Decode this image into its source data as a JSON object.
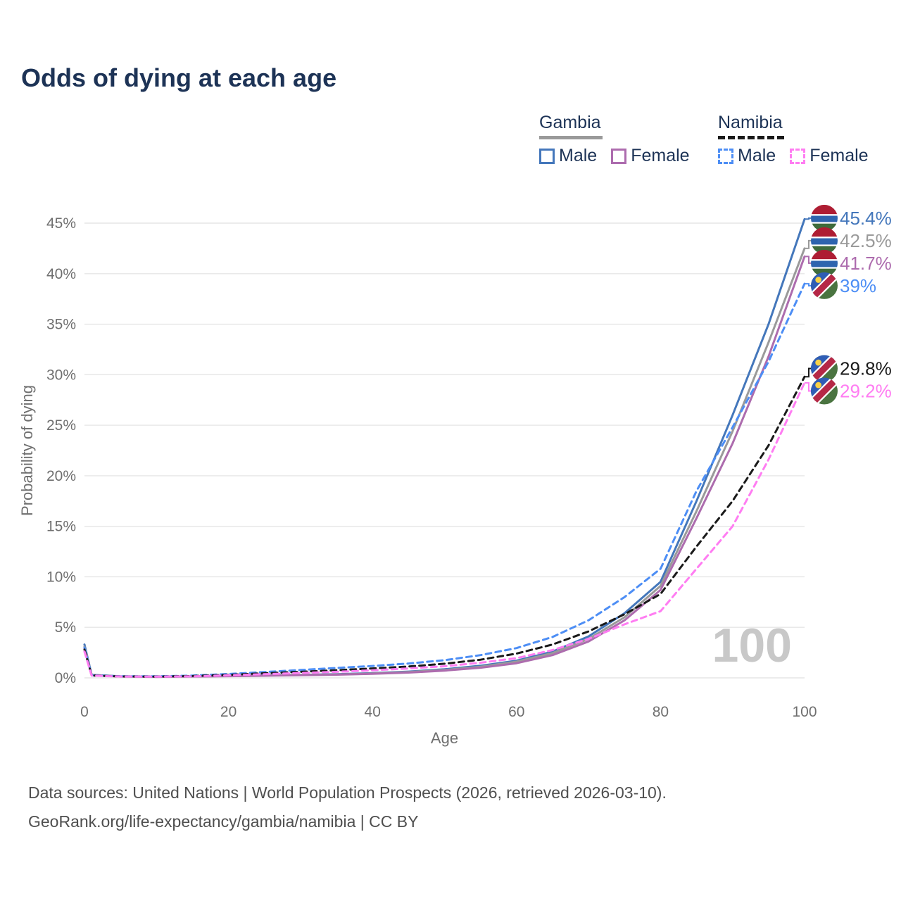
{
  "title": "Odds of dying at each age",
  "legend": {
    "groups": [
      {
        "label": "Gambia",
        "line_style": "solid",
        "group_color": "#9a9a9a",
        "items": [
          {
            "label": "Male",
            "color": "#4477bb"
          },
          {
            "label": "Female",
            "color": "#ad6cae"
          }
        ]
      },
      {
        "label": "Namibia",
        "line_style": "dashed",
        "group_color": "#1a1a1a",
        "items": [
          {
            "label": "Male",
            "color": "#4d8ef5"
          },
          {
            "label": "Female",
            "color": "#ff7df2"
          }
        ]
      }
    ]
  },
  "watermark": "100",
  "footer": {
    "line1": "Data sources: United Nations | World Population Prospects (2026, retrieved 2026-03-10).",
    "line2": "GeoRank.org/life-expectancy/gambia/namibia | CC BY"
  },
  "chart_data": {
    "type": "line",
    "title": "Odds of dying at each age",
    "xlabel": "Age",
    "ylabel": "Probability of dying",
    "xlim": [
      0,
      100
    ],
    "ylim": [
      0,
      45
    ],
    "y_unit": "%",
    "x_ticks": [
      0,
      20,
      40,
      60,
      80,
      100
    ],
    "y_ticks": [
      0,
      5,
      10,
      15,
      20,
      25,
      30,
      35,
      40,
      45
    ],
    "grid": "horizontal",
    "legend_position": "top-right",
    "x": [
      0,
      1,
      5,
      10,
      15,
      20,
      25,
      30,
      35,
      40,
      45,
      50,
      55,
      60,
      65,
      70,
      75,
      80,
      85,
      90,
      95,
      100
    ],
    "series": [
      {
        "name": "Gambia Male",
        "country": "Gambia",
        "sex": "Male",
        "color": "#4477bb",
        "dashed": false,
        "end_label": "45.4%",
        "values": [
          3.3,
          0.3,
          0.15,
          0.12,
          0.15,
          0.2,
          0.25,
          0.3,
          0.37,
          0.47,
          0.62,
          0.85,
          1.2,
          1.7,
          2.6,
          4.1,
          6.4,
          9.5,
          17.5,
          26.0,
          35.0,
          45.4
        ]
      },
      {
        "name": "Gambia",
        "country": "Gambia",
        "sex": "Both",
        "color": "#9a9a9a",
        "dashed": false,
        "end_label": "42.5%",
        "values": [
          3.1,
          0.28,
          0.14,
          0.11,
          0.14,
          0.18,
          0.23,
          0.28,
          0.34,
          0.43,
          0.57,
          0.78,
          1.1,
          1.6,
          2.45,
          3.85,
          6.0,
          9.1,
          16.5,
          24.4,
          33.2,
          42.5
        ]
      },
      {
        "name": "Gambia Female",
        "country": "Gambia",
        "sex": "Female",
        "color": "#ad6cae",
        "dashed": false,
        "end_label": "41.7%",
        "values": [
          2.9,
          0.26,
          0.13,
          0.1,
          0.13,
          0.17,
          0.21,
          0.26,
          0.31,
          0.4,
          0.52,
          0.72,
          1.0,
          1.45,
          2.25,
          3.6,
          5.7,
          8.7,
          15.8,
          23.2,
          31.8,
          41.7
        ]
      },
      {
        "name": "Namibia Male",
        "country": "Namibia",
        "sex": "Male",
        "color": "#4d8ef5",
        "dashed": true,
        "end_label": "39%",
        "values": [
          3.0,
          0.25,
          0.15,
          0.15,
          0.22,
          0.38,
          0.58,
          0.78,
          0.98,
          1.18,
          1.42,
          1.75,
          2.25,
          2.95,
          4.05,
          5.7,
          8.0,
          10.8,
          18.5,
          24.8,
          31.3,
          39.0
        ]
      },
      {
        "name": "Namibia",
        "country": "Namibia",
        "sex": "Both",
        "color": "#1a1a1a",
        "dashed": true,
        "end_label": "29.8%",
        "values": [
          2.8,
          0.24,
          0.14,
          0.13,
          0.18,
          0.3,
          0.45,
          0.6,
          0.76,
          0.93,
          1.12,
          1.4,
          1.8,
          2.4,
          3.3,
          4.6,
          6.3,
          8.3,
          13.0,
          17.5,
          23.0,
          29.8
        ]
      },
      {
        "name": "Namibia Female",
        "country": "Namibia",
        "sex": "Female",
        "color": "#ff7df2",
        "dashed": true,
        "end_label": "29.2%",
        "values": [
          2.6,
          0.22,
          0.13,
          0.12,
          0.15,
          0.25,
          0.36,
          0.48,
          0.6,
          0.75,
          0.93,
          1.15,
          1.5,
          1.95,
          2.75,
          3.85,
          5.3,
          6.6,
          10.8,
          15.0,
          21.6,
          29.2
        ]
      }
    ],
    "flag_colors": {
      "gambia": {
        "red": "#ae1d33",
        "blue": "#2e64ae",
        "green": "#3f6b3b",
        "white": "#ffffff"
      },
      "namibia": {
        "blue": "#2f5db5",
        "red": "#b52846",
        "green": "#4a7440",
        "white": "#ffffff",
        "sun": "#f7d147"
      }
    },
    "axis_color": "#6f6f6f",
    "grid_color": "#e6e6e6",
    "watermark_color": "#c8c8c8"
  }
}
